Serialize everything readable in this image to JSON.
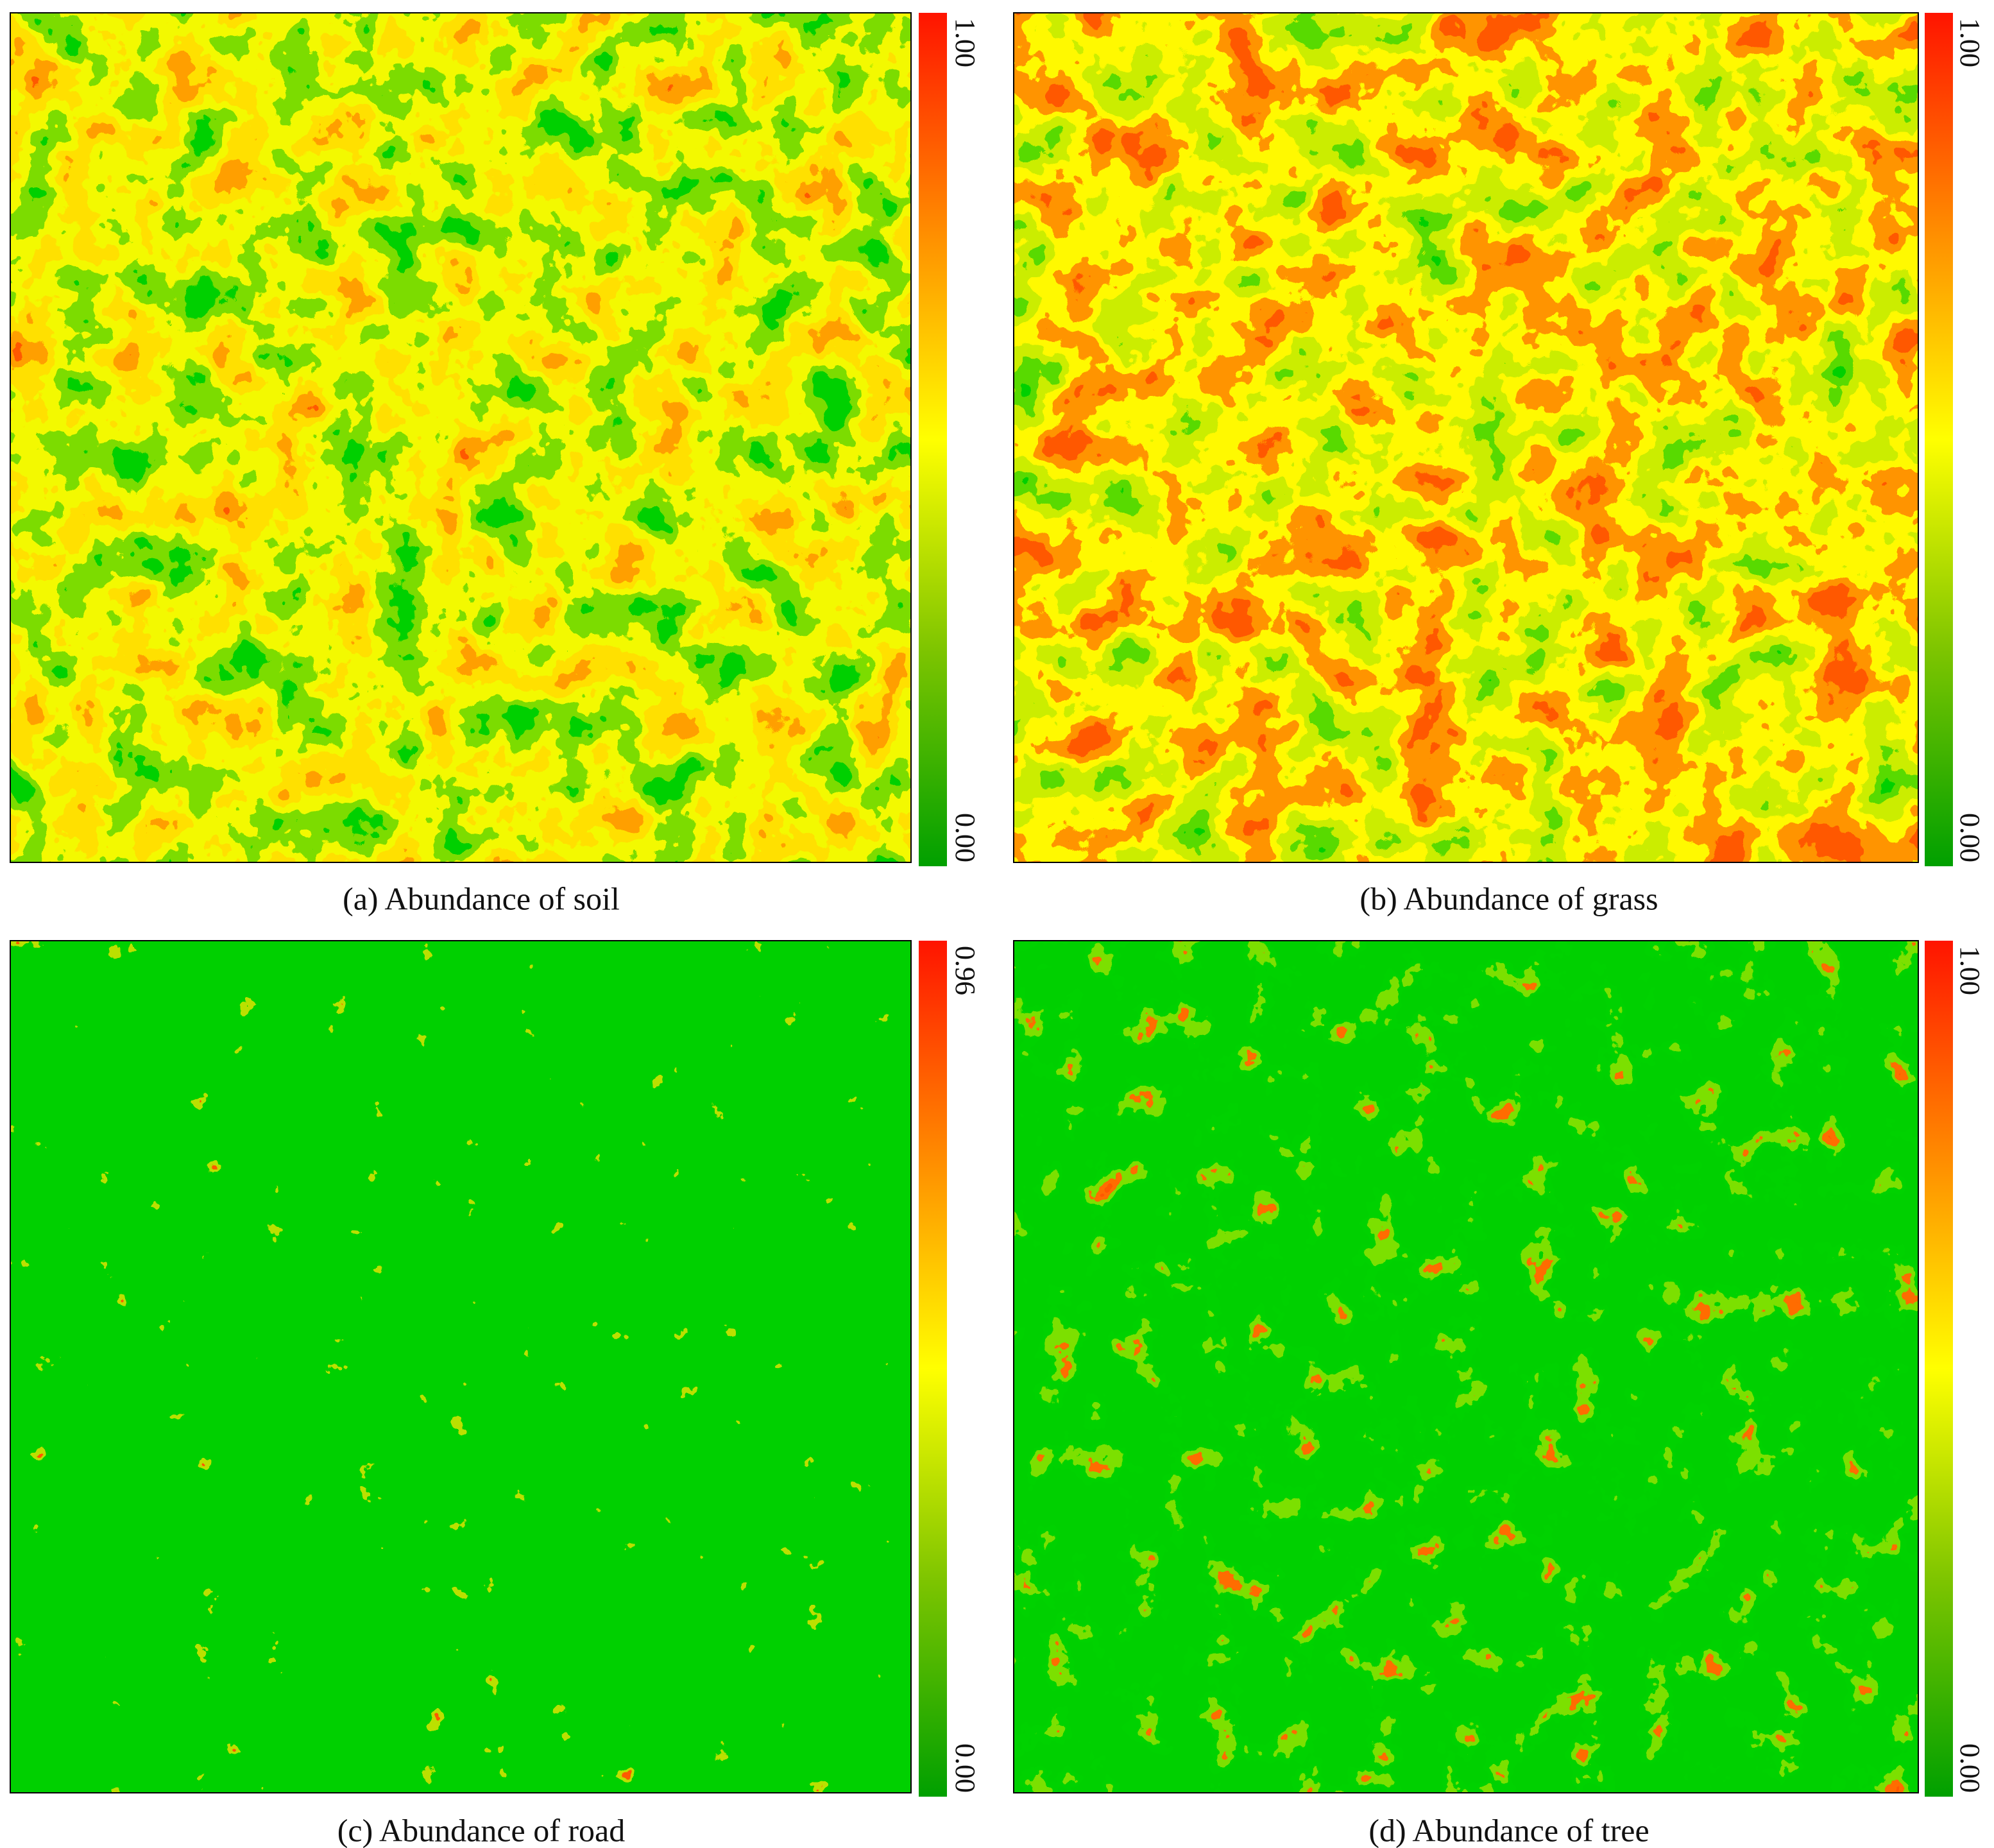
{
  "panels": [
    {
      "caption": "(a) Abundance of soil",
      "colorbar": {
        "max_label": "1.00",
        "min_label": "0.00"
      }
    },
    {
      "caption": "(b) Abundance of grass",
      "colorbar": {
        "max_label": "1.00",
        "min_label": "0.00"
      }
    },
    {
      "caption": "(c) Abundance of road",
      "colorbar": {
        "max_label": "0.96",
        "min_label": "0.00"
      }
    },
    {
      "caption": "(d) Abundance of tree",
      "colorbar": {
        "max_label": "1.00",
        "min_label": "0.00"
      }
    }
  ]
}
